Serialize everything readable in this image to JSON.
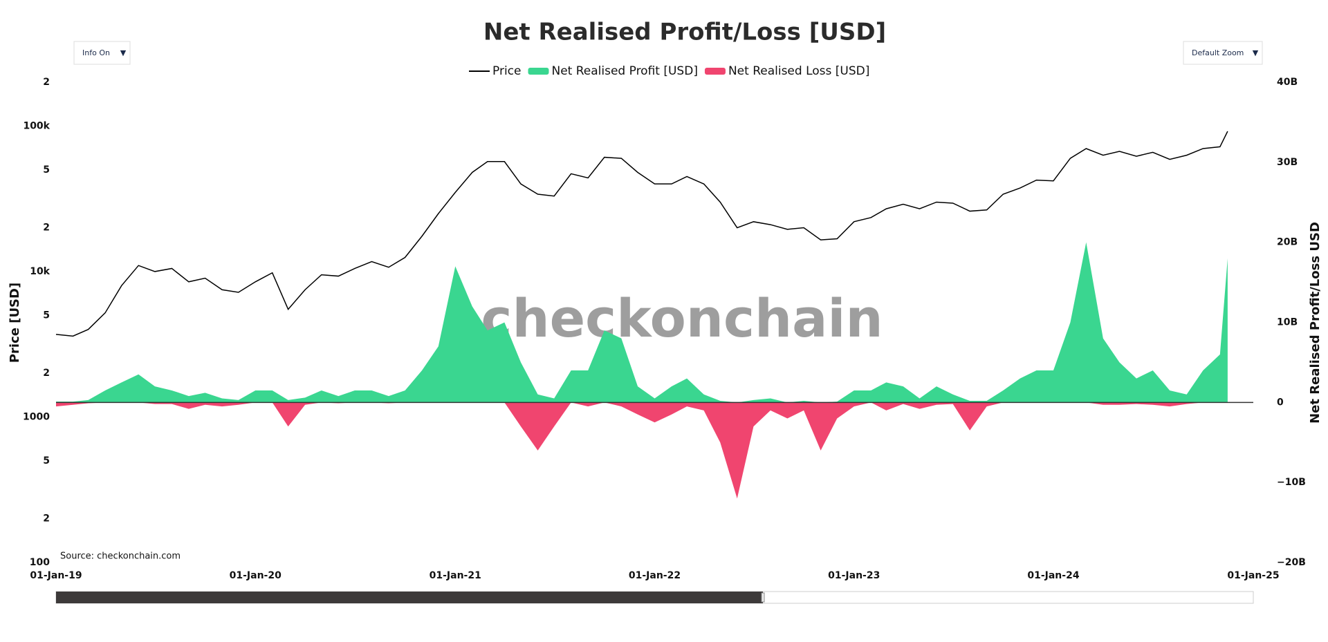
{
  "chart_data": {
    "type": "line",
    "title": "Net Realised Profit/Loss [USD]",
    "buttons": [
      "Info On",
      "Default Zoom"
    ],
    "watermark": "checkonchain",
    "source": "Source: checkonchain.com",
    "y_label": "Price [USD]",
    "y2_label": "Net Realised Profit/Loss USD",
    "ylog": true,
    "xlim": [
      "2019-01-01",
      "2025-01-01"
    ],
    "xticks": [
      {
        "value": "2019-01-01",
        "label": "01-Jan-19"
      },
      {
        "value": "2020-01-01",
        "label": "01-Jan-20"
      },
      {
        "value": "2021-01-01",
        "label": "01-Jan-21"
      },
      {
        "value": "2022-01-01",
        "label": "01-Jan-22"
      },
      {
        "value": "2023-01-01",
        "label": "01-Jan-23"
      },
      {
        "value": "2024-01-01",
        "label": "01-Jan-24"
      },
      {
        "value": "2025-01-01",
        "label": "01-Jan-25"
      }
    ],
    "ylim": [
      100,
      200000
    ],
    "yticks": [
      100,
      {
        "value": 200,
        "label": "2"
      },
      {
        "value": 500,
        "label": "5"
      },
      1000,
      {
        "value": 2000,
        "label": "2"
      },
      {
        "value": 5000,
        "label": "5"
      },
      {
        "value": 10000,
        "label": "10k"
      },
      {
        "value": 20000,
        "label": "2"
      },
      {
        "value": 50000,
        "label": "5"
      },
      {
        "value": 100000,
        "label": "100k"
      },
      {
        "value": 200000,
        "label": "2"
      }
    ],
    "y2lim": [
      -20000000000.0,
      40000000000.0
    ],
    "y2ticks": [
      {
        "value": -20000000000.0,
        "label": "−20B"
      },
      {
        "value": -10000000000.0,
        "label": "−10B"
      },
      0,
      {
        "value": 10000000000.0,
        "label": "10B"
      },
      {
        "value": 20000000000.0,
        "label": "20B"
      },
      {
        "value": 30000000000.0,
        "label": "30B"
      },
      {
        "value": 40000000000.0,
        "label": "40B"
      }
    ],
    "x": [
      "2019-01-01",
      "2019-02-01",
      "2019-03-01",
      "2019-04-01",
      "2019-05-01",
      "2019-06-01",
      "2019-07-01",
      "2019-08-01",
      "2019-09-01",
      "2019-10-01",
      "2019-11-01",
      "2019-12-01",
      "2020-01-01",
      "2020-02-01",
      "2020-03-01",
      "2020-04-01",
      "2020-05-01",
      "2020-06-01",
      "2020-07-01",
      "2020-08-01",
      "2020-09-01",
      "2020-10-01",
      "2020-11-01",
      "2020-12-01",
      "2021-01-01",
      "2021-02-01",
      "2021-03-01",
      "2021-04-01",
      "2021-05-01",
      "2021-06-01",
      "2021-07-01",
      "2021-08-01",
      "2021-09-01",
      "2021-10-01",
      "2021-11-01",
      "2021-12-01",
      "2022-01-01",
      "2022-02-01",
      "2022-03-01",
      "2022-04-01",
      "2022-05-01",
      "2022-06-01",
      "2022-07-01",
      "2022-08-01",
      "2022-09-01",
      "2022-10-01",
      "2022-11-01",
      "2022-12-01",
      "2023-01-01",
      "2023-02-01",
      "2023-03-01",
      "2023-04-01",
      "2023-05-01",
      "2023-06-01",
      "2023-07-01",
      "2023-08-01",
      "2023-09-01",
      "2023-10-01",
      "2023-11-01",
      "2023-12-01",
      "2024-01-01",
      "2024-02-01",
      "2024-03-01",
      "2024-04-01",
      "2024-05-01",
      "2024-06-01",
      "2024-07-01",
      "2024-08-01",
      "2024-09-01",
      "2024-10-01",
      "2024-11-01",
      "2024-11-15"
    ],
    "series": [
      {
        "name": "Price",
        "color": "#000000",
        "axis": "y",
        "kind": "line",
        "values": [
          3700,
          3600,
          4000,
          5200,
          8000,
          11000,
          10000,
          10500,
          8500,
          9000,
          7500,
          7200,
          8500,
          9800,
          5500,
          7500,
          9500,
          9300,
          10500,
          11700,
          10700,
          12500,
          17500,
          25000,
          35000,
          48000,
          57000,
          57000,
          40000,
          34000,
          33000,
          47000,
          44000,
          61000,
          60000,
          48000,
          40000,
          40000,
          45000,
          40000,
          30000,
          20000,
          22000,
          21000,
          19500,
          20000,
          16500,
          16800,
          22000,
          23500,
          27000,
          29000,
          27000,
          30000,
          29500,
          26000,
          26500,
          34000,
          37500,
          42500,
          42000,
          60000,
          70000,
          63000,
          67000,
          62000,
          66000,
          59000,
          63000,
          70000,
          72000,
          92000
        ]
      },
      {
        "name": "Net Realised Profit [USD]",
        "color": "#3ad690",
        "axis": "y2",
        "kind": "area",
        "values": [
          100000000.0,
          100000000.0,
          300000000.0,
          1500000000.0,
          2500000000.0,
          3500000000.0,
          2000000000.0,
          1500000000.0,
          800000000.0,
          1200000000.0,
          500000000.0,
          300000000.0,
          1500000000.0,
          1500000000.0,
          300000000.0,
          600000000.0,
          1500000000.0,
          800000000.0,
          1500000000.0,
          1500000000.0,
          800000000.0,
          1500000000.0,
          4000000000.0,
          7000000000.0,
          17000000000.0,
          12000000000.0,
          9000000000.0,
          10000000000.0,
          5000000000.0,
          1000000000.0,
          500000000.0,
          4000000000.0,
          4000000000.0,
          9000000000.0,
          8000000000.0,
          2000000000.0,
          500000000.0,
          2000000000.0,
          3000000000.0,
          1000000000.0,
          200000000.0,
          0,
          300000000.0,
          500000000.0,
          0,
          200000000.0,
          0,
          100000000.0,
          1500000000.0,
          1500000000.0,
          2500000000.0,
          2000000000.0,
          500000000.0,
          2000000000.0,
          1000000000.0,
          200000000.0,
          200000000.0,
          1500000000.0,
          3000000000.0,
          4000000000.0,
          4000000000.0,
          10000000000.0,
          20000000000.0,
          8000000000.0,
          5000000000.0,
          3000000000.0,
          4000000000.0,
          1500000000.0,
          1000000000.0,
          4000000000.0,
          6000000000.0,
          18000000000.0
        ]
      },
      {
        "name": "Net Realised Loss [USD]",
        "color": "#f0456f",
        "axis": "y2",
        "kind": "area",
        "values": [
          -500000000.0,
          -300000000.0,
          -100000000.0,
          0,
          0,
          0,
          -200000000.0,
          -200000000.0,
          -800000000.0,
          -300000000.0,
          -500000000.0,
          -300000000.0,
          0,
          0,
          -3000000000.0,
          -300000000.0,
          0,
          -100000000.0,
          0,
          0,
          -100000000.0,
          0,
          0,
          0,
          0,
          0,
          0,
          0,
          -3000000000.0,
          -6000000000.0,
          -3000000000.0,
          0,
          -500000000.0,
          0,
          -500000000.0,
          -1500000000.0,
          -2500000000.0,
          -1500000000.0,
          -500000000.0,
          -1000000000.0,
          -5000000000.0,
          -12000000000.0,
          -3000000000.0,
          -1000000000.0,
          -2000000000.0,
          -1000000000.0,
          -6000000000.0,
          -2000000000.0,
          -500000000.0,
          0,
          -1000000000.0,
          -200000000.0,
          -800000000.0,
          -300000000.0,
          -200000000.0,
          -3500000000.0,
          -500000000.0,
          0,
          0,
          0,
          0,
          0,
          0,
          -300000000.0,
          -300000000.0,
          -200000000.0,
          -300000000.0,
          -500000000.0,
          -200000000.0,
          0,
          0,
          0
        ]
      }
    ]
  }
}
